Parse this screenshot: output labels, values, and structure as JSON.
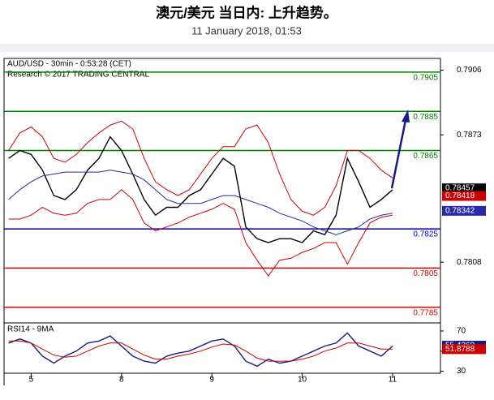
{
  "header": {
    "title": "澳元/美元 当日内: 上升趋势。",
    "subtitle": "11 January 2018, 01:53"
  },
  "chart_data": [
    {
      "type": "line",
      "title": "AUD/USD - 30min - 0:53:28 (CET)",
      "subtitle": "Research © 2017 TRADING CENTRAL",
      "x": [
        -0.25,
        -0.125,
        0,
        0.125,
        0.25,
        0.375,
        0.5,
        0.625,
        0.75,
        0.875,
        1,
        1.125,
        1.25,
        1.375,
        1.5,
        1.625,
        1.75,
        1.875,
        2,
        2.125,
        2.25,
        2.375,
        2.5,
        2.625,
        2.75,
        2.875,
        3,
        3.125,
        3.25,
        3.375,
        3.5,
        3.625,
        3.75,
        3.875,
        4
      ],
      "xlim": [
        -0.3,
        4.53
      ],
      "xticks": [
        {
          "value": 0,
          "label": "5"
        },
        {
          "value": 1,
          "label": "8"
        },
        {
          "value": 2,
          "label": "9"
        },
        {
          "value": 3,
          "label": "10"
        },
        {
          "value": 4,
          "label": "11"
        }
      ],
      "ylim": [
        0.7777,
        0.7912
      ],
      "yticks": [
        0.7906,
        0.7873,
        0.7808
      ],
      "series": [
        {
          "name": "Price",
          "color": "#000000",
          "values": [
            0.7861,
            0.7865,
            0.7863,
            0.7855,
            0.7842,
            0.784,
            0.7845,
            0.7855,
            0.7861,
            0.7872,
            0.7865,
            0.7853,
            0.784,
            0.7832,
            0.7836,
            0.7836,
            0.7842,
            0.7845,
            0.7853,
            0.7861,
            0.7857,
            0.7826,
            0.782,
            0.7818,
            0.782,
            0.782,
            0.7818,
            0.7824,
            0.7822,
            0.7832,
            0.7861,
            0.7849,
            0.7836,
            0.784,
            0.7845
          ]
        },
        {
          "name": "Upper band",
          "color": "#cc0000",
          "values": [
            0.7865,
            0.7874,
            0.7877,
            0.7872,
            0.7861,
            0.7859,
            0.7863,
            0.7869,
            0.7874,
            0.7878,
            0.788,
            0.7876,
            0.7861,
            0.7849,
            0.7845,
            0.7842,
            0.7845,
            0.7853,
            0.7861,
            0.7867,
            0.7867,
            0.7876,
            0.7878,
            0.7869,
            0.7853,
            0.784,
            0.7834,
            0.7832,
            0.7836,
            0.7847,
            0.7865,
            0.7865,
            0.7861,
            0.7855,
            0.7851
          ]
        },
        {
          "name": "Lower band",
          "color": "#cc0000",
          "values": [
            0.783,
            0.783,
            0.7832,
            0.7836,
            0.7833,
            0.7832,
            0.7833,
            0.7838,
            0.784,
            0.784,
            0.7845,
            0.784,
            0.7828,
            0.7824,
            0.7826,
            0.7828,
            0.7831,
            0.7833,
            0.7835,
            0.7838,
            0.7835,
            0.7818,
            0.7809,
            0.7801,
            0.7809,
            0.781,
            0.7813,
            0.7815,
            0.7818,
            0.7818,
            0.7807,
            0.7818,
            0.7828,
            0.7831,
            0.7832
          ]
        },
        {
          "name": "Moving average",
          "color": "#2a2aa8",
          "values": [
            0.784,
            0.7845,
            0.7849,
            0.7852,
            0.7853,
            0.7854,
            0.7854,
            0.7854,
            0.7854,
            0.7855,
            0.7854,
            0.7853,
            0.785,
            0.7845,
            0.784,
            0.7838,
            0.7838,
            0.7838,
            0.784,
            0.7842,
            0.7842,
            0.784,
            0.7838,
            0.7836,
            0.7833,
            0.7831,
            0.7829,
            0.7826,
            0.7824,
            0.7822,
            0.7824,
            0.7826,
            0.783,
            0.7832,
            0.7833
          ]
        }
      ],
      "levels": [
        {
          "value": 0.7905,
          "color": "#008000"
        },
        {
          "value": 0.7885,
          "color": "#008000"
        },
        {
          "value": 0.7865,
          "color": "#008000"
        },
        {
          "value": 0.7825,
          "color": "#0000cc"
        },
        {
          "value": 0.7805,
          "color": "#e00000"
        },
        {
          "value": 0.7785,
          "color": "#e00000"
        }
      ],
      "price_tags": [
        {
          "value": 0.78457,
          "color": "#000000"
        },
        {
          "value": 0.78418,
          "color": "#cc0000"
        },
        {
          "value": 0.78342,
          "color": "#2a2aa8"
        }
      ]
    },
    {
      "type": "line",
      "title": "RSI14 - 9MA",
      "x": [
        -0.25,
        -0.125,
        0,
        0.125,
        0.25,
        0.375,
        0.5,
        0.625,
        0.75,
        0.875,
        1,
        1.125,
        1.25,
        1.375,
        1.5,
        1.625,
        1.75,
        1.875,
        2,
        2.125,
        2.25,
        2.375,
        2.5,
        2.625,
        2.75,
        2.875,
        3,
        3.125,
        3.25,
        3.375,
        3.5,
        3.625,
        3.75,
        3.875,
        4
      ],
      "xlim": [
        -0.3,
        4.53
      ],
      "ylim": [
        28,
        78
      ],
      "yticks": [
        70,
        50,
        30
      ],
      "series": [
        {
          "name": "RSI14",
          "color": "#1a1a80",
          "values": [
            58,
            62,
            58,
            45,
            38,
            45,
            50,
            58,
            60,
            65,
            55,
            45,
            40,
            38,
            45,
            48,
            50,
            55,
            60,
            62,
            55,
            40,
            35,
            42,
            38,
            40,
            45,
            50,
            55,
            58,
            68,
            55,
            50,
            45,
            55
          ]
        },
        {
          "name": "9MA",
          "color": "#cc0000",
          "values": [
            60,
            60,
            58,
            52,
            46,
            44,
            45,
            50,
            55,
            58,
            58,
            52,
            46,
            42,
            42,
            45,
            47,
            50,
            54,
            57,
            56,
            50,
            43,
            40,
            40,
            40,
            42,
            45,
            50,
            53,
            58,
            58,
            55,
            52,
            52
          ]
        }
      ],
      "price_tags": [
        {
          "value": 55.4269,
          "color": "#1a1a80"
        },
        {
          "value": 51.8788,
          "color": "#cc0000"
        }
      ]
    }
  ]
}
